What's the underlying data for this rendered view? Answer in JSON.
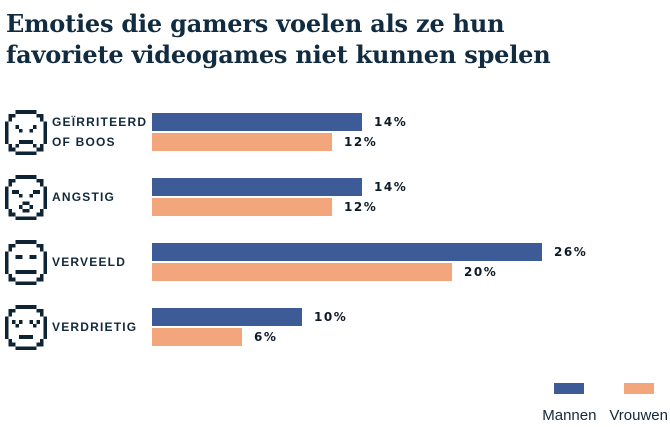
{
  "title": "Emoties die gamers voelen als ze hun favoriete videogames niet kunnen spelen",
  "title_lines": [
    "Emoties die gamers voelen als ze hun",
    "favoriete videogames niet kunnen spelen"
  ],
  "colors": {
    "background": "#ffffff",
    "ink": "#112b40",
    "label_ink": "#12293c",
    "value_ink": "#0d1b28",
    "icon_ink": "#0e2334",
    "mannen_blue": "#3d5b97",
    "vrouwen_orange": "#f3a57c"
  },
  "chart_data": {
    "type": "bar",
    "orientation": "horizontal",
    "unit": "%",
    "title": "Emoties die gamers voelen als ze hun favoriete videogames niet kunnen spelen",
    "categories": [
      "Geïrriteerd of boos",
      "Angstig",
      "Verveeld",
      "Verdrietig"
    ],
    "category_display_lines": [
      [
        "GEÏRRITEERD",
        "OF BOOS"
      ],
      [
        "ANGSTIG"
      ],
      [
        "VERVEELD"
      ],
      [
        "VERDRIETIG"
      ]
    ],
    "category_icons": [
      "angry-face-icon",
      "anxious-face-icon",
      "bored-face-icon",
      "sad-face-icon"
    ],
    "series": [
      {
        "name": "Mannen",
        "color": "#3d5b97",
        "values": [
          14,
          14,
          26,
          10
        ]
      },
      {
        "name": "Vrouwen",
        "color": "#f3a57c",
        "values": [
          12,
          12,
          20,
          6
        ]
      }
    ],
    "value_labels": [
      [
        "14%",
        "12%"
      ],
      [
        "14%",
        "12%"
      ],
      [
        "26%",
        "20%"
      ],
      [
        "10%",
        "6%"
      ]
    ],
    "xlim": [
      0,
      30
    ],
    "value_label_format": "{value}%",
    "grid": false,
    "legend_position": "bottom-right"
  }
}
